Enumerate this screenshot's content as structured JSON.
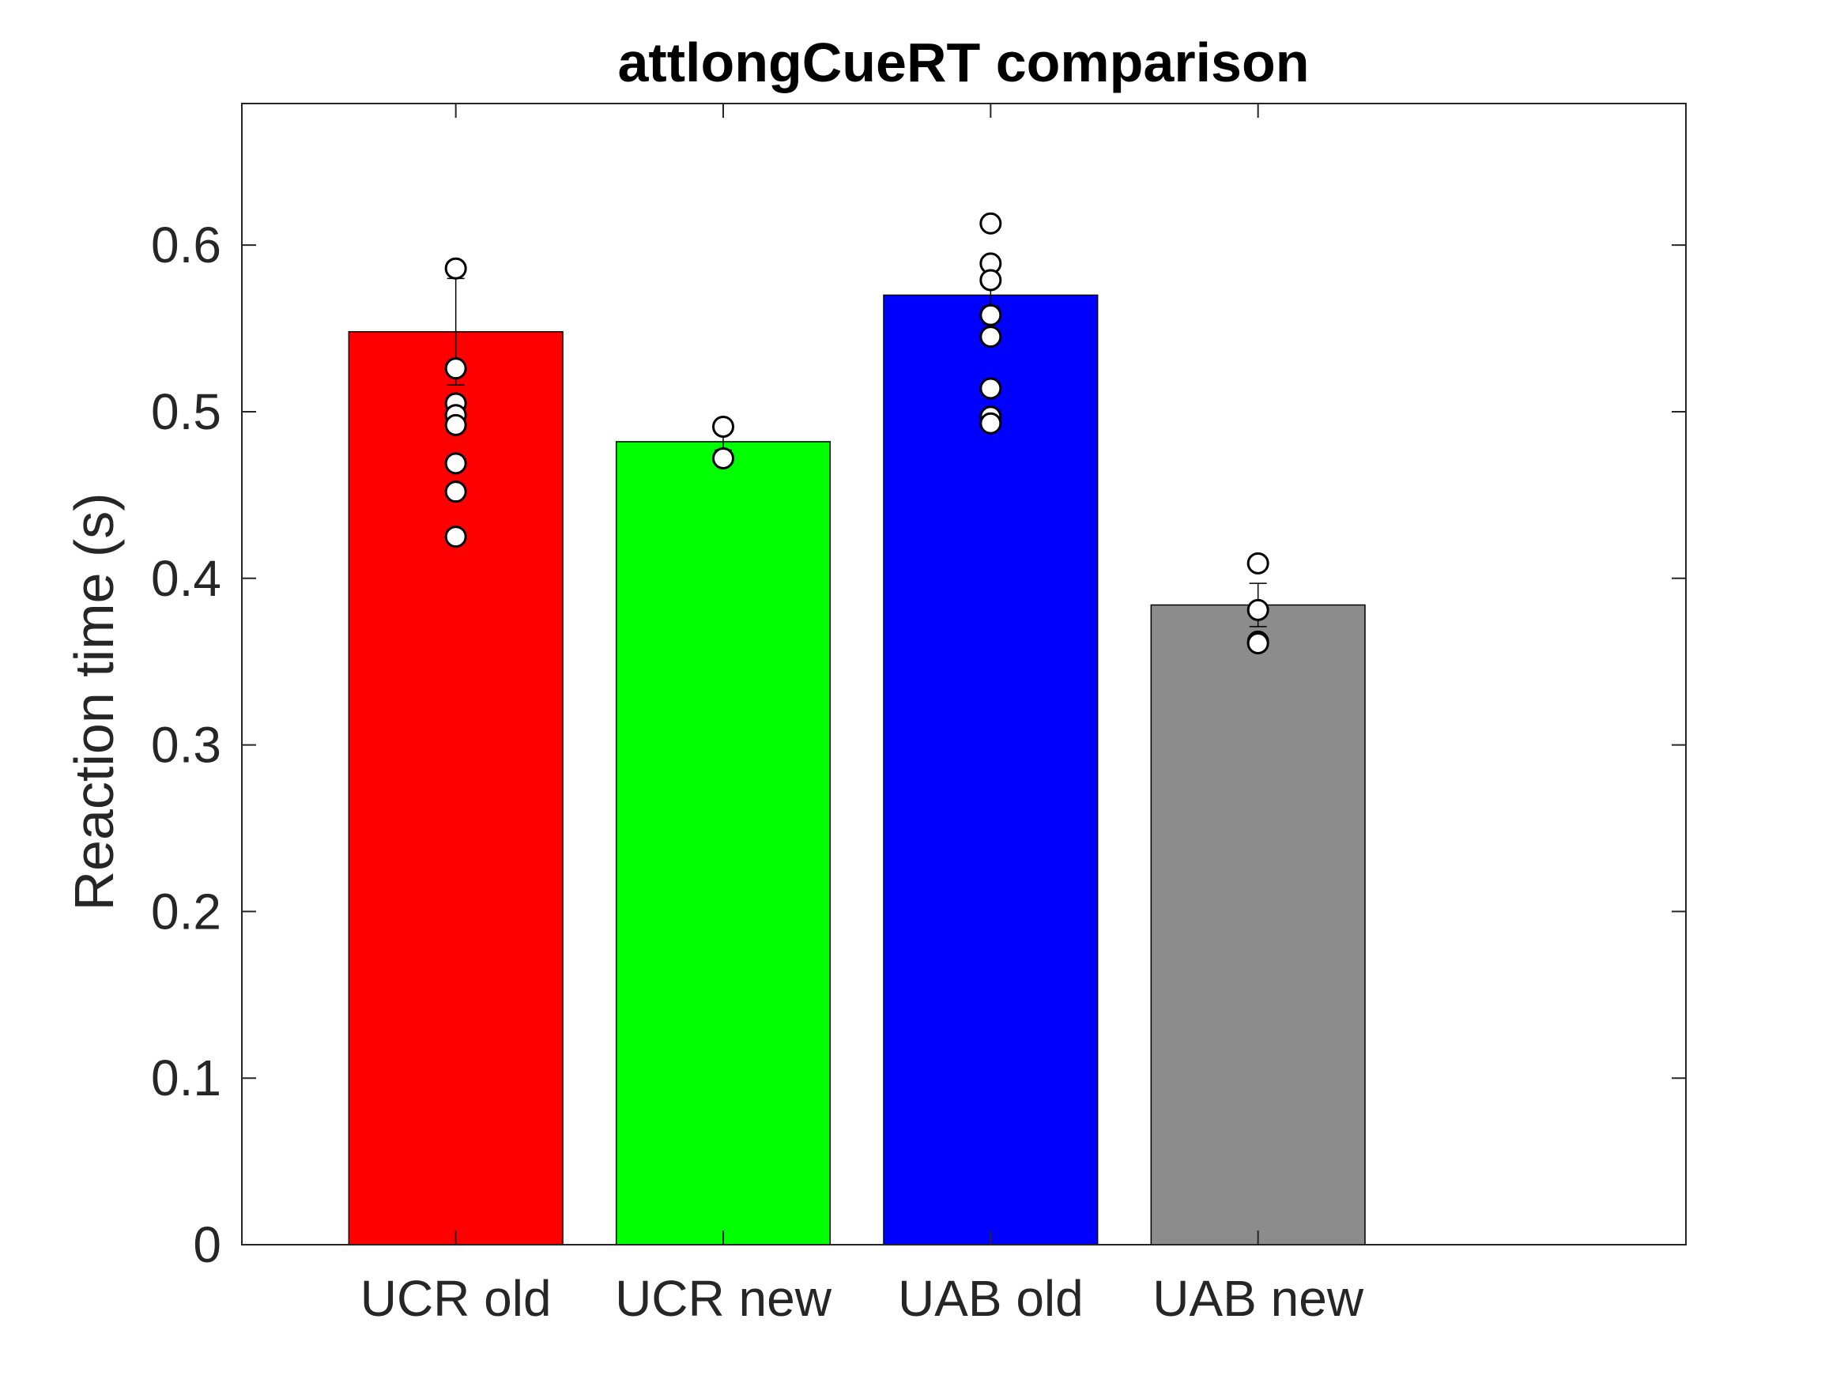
{
  "chart_data": {
    "type": "bar",
    "title": "attlongCueRT comparison",
    "xlabel": "",
    "ylabel": "Reaction time (s)",
    "categories": [
      "UCR old",
      "UCR new",
      "UAB old",
      "UAB new"
    ],
    "values": [
      0.548,
      0.482,
      0.57,
      0.384
    ],
    "error_upper": [
      0.58,
      0.487,
      0.577,
      0.397
    ],
    "error_lower": [
      0.516,
      0.477,
      0.563,
      0.371
    ],
    "bar_colors": [
      "#ff0000",
      "#00ff00",
      "#0000ff",
      "#8c8c8c"
    ],
    "points": [
      [
        0.586,
        0.526,
        0.505,
        0.498,
        0.492,
        0.469,
        0.452,
        0.425
      ],
      [
        0.491,
        0.472
      ],
      [
        0.613,
        0.589,
        0.579,
        0.558,
        0.545,
        0.514,
        0.497,
        0.493
      ],
      [
        0.409,
        0.381,
        0.362,
        0.361
      ]
    ],
    "ylim": [
      0,
      0.685
    ],
    "xlim": [
      0.2,
      5.6
    ],
    "yticks": [
      0,
      0.1,
      0.2,
      0.3,
      0.4,
      0.5,
      0.6
    ],
    "ytick_labels": [
      "0",
      "0.1",
      "0.2",
      "0.3",
      "0.4",
      "0.5",
      "0.6"
    ],
    "grid": false,
    "legend": "none"
  }
}
